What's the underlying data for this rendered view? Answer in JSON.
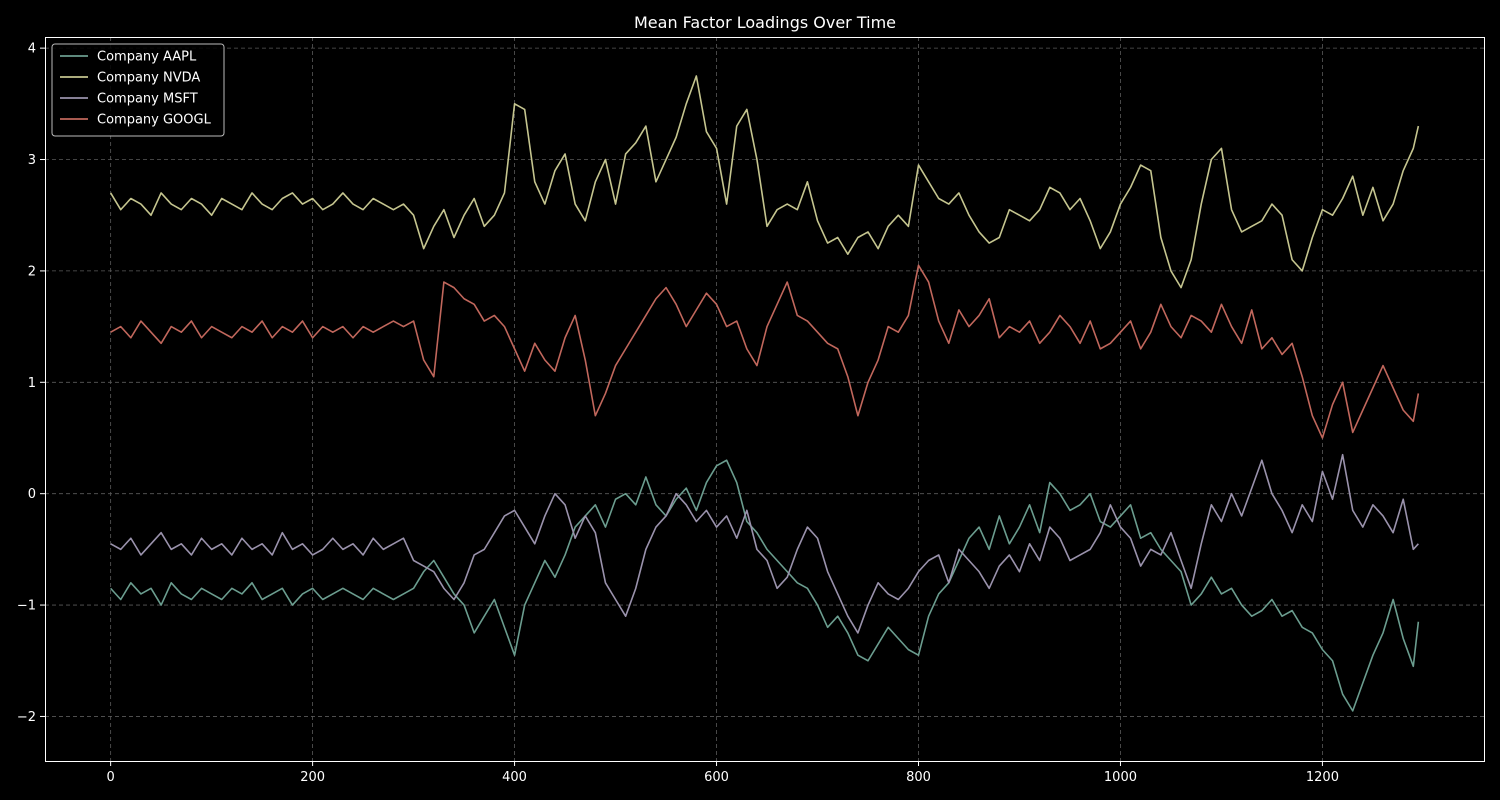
{
  "chart_data": {
    "type": "line",
    "title": "Mean Factor Loadings Over Time",
    "xlabel": "",
    "ylabel": "",
    "xlim": [
      -65,
      1360
    ],
    "ylim": [
      -2.4,
      4.1
    ],
    "xticks": [
      0,
      200,
      400,
      600,
      800,
      1000,
      1200
    ],
    "yticks": [
      -2,
      -1,
      0,
      1,
      2,
      3,
      4
    ],
    "ytick_labels": [
      "−2",
      "−1",
      "0",
      "1",
      "2",
      "3",
      "4"
    ],
    "grid": true,
    "legend_position": "top-left",
    "series": [
      {
        "name": "Company AAPL",
        "color": "#6b9d8f",
        "x": [
          0,
          10,
          20,
          30,
          40,
          50,
          60,
          70,
          80,
          90,
          100,
          110,
          120,
          130,
          140,
          150,
          160,
          170,
          180,
          190,
          200,
          210,
          220,
          230,
          240,
          250,
          260,
          270,
          280,
          290,
          300,
          310,
          320,
          330,
          340,
          350,
          360,
          370,
          380,
          390,
          400,
          410,
          420,
          430,
          440,
          450,
          460,
          470,
          480,
          490,
          500,
          510,
          520,
          530,
          540,
          550,
          560,
          570,
          580,
          590,
          600,
          610,
          620,
          630,
          640,
          650,
          660,
          670,
          680,
          690,
          700,
          710,
          720,
          730,
          740,
          750,
          760,
          770,
          780,
          790,
          800,
          810,
          820,
          830,
          840,
          850,
          860,
          870,
          880,
          890,
          900,
          910,
          920,
          930,
          940,
          950,
          960,
          970,
          980,
          990,
          1000,
          1010,
          1020,
          1030,
          1040,
          1050,
          1060,
          1070,
          1080,
          1090,
          1100,
          1110,
          1120,
          1130,
          1140,
          1150,
          1160,
          1170,
          1180,
          1190,
          1200,
          1210,
          1220,
          1230,
          1240,
          1250,
          1260,
          1270,
          1280,
          1290,
          1295
        ],
        "y": [
          -0.85,
          -0.95,
          -0.8,
          -0.9,
          -0.85,
          -1.0,
          -0.8,
          -0.9,
          -0.95,
          -0.85,
          -0.9,
          -0.95,
          -0.85,
          -0.9,
          -0.8,
          -0.95,
          -0.9,
          -0.85,
          -1.0,
          -0.9,
          -0.85,
          -0.95,
          -0.9,
          -0.85,
          -0.9,
          -0.95,
          -0.85,
          -0.9,
          -0.95,
          -0.9,
          -0.85,
          -0.7,
          -0.6,
          -0.75,
          -0.9,
          -1.0,
          -1.25,
          -1.1,
          -0.95,
          -1.2,
          -1.45,
          -1.0,
          -0.8,
          -0.6,
          -0.75,
          -0.55,
          -0.3,
          -0.2,
          -0.1,
          -0.3,
          -0.05,
          0.0,
          -0.1,
          0.15,
          -0.1,
          -0.2,
          -0.05,
          0.05,
          -0.15,
          0.1,
          0.25,
          0.3,
          0.1,
          -0.25,
          -0.35,
          -0.5,
          -0.6,
          -0.7,
          -0.8,
          -0.85,
          -1.0,
          -1.2,
          -1.1,
          -1.25,
          -1.45,
          -1.5,
          -1.35,
          -1.2,
          -1.3,
          -1.4,
          -1.45,
          -1.1,
          -0.9,
          -0.8,
          -0.6,
          -0.4,
          -0.3,
          -0.5,
          -0.2,
          -0.45,
          -0.3,
          -0.1,
          -0.35,
          0.1,
          0.0,
          -0.15,
          -0.1,
          0.0,
          -0.25,
          -0.3,
          -0.2,
          -0.1,
          -0.4,
          -0.35,
          -0.5,
          -0.6,
          -0.7,
          -1.0,
          -0.9,
          -0.75,
          -0.9,
          -0.85,
          -1.0,
          -1.1,
          -1.05,
          -0.95,
          -1.1,
          -1.05,
          -1.2,
          -1.25,
          -1.4,
          -1.5,
          -1.8,
          -1.95,
          -1.7,
          -1.45,
          -1.25,
          -0.95,
          -1.3,
          -1.55,
          -1.15
        ]
      },
      {
        "name": "Company NVDA",
        "color": "#c5c58f",
        "x": [
          0,
          10,
          20,
          30,
          40,
          50,
          60,
          70,
          80,
          90,
          100,
          110,
          120,
          130,
          140,
          150,
          160,
          170,
          180,
          190,
          200,
          210,
          220,
          230,
          240,
          250,
          260,
          270,
          280,
          290,
          300,
          310,
          320,
          330,
          340,
          350,
          360,
          370,
          380,
          390,
          400,
          410,
          420,
          430,
          440,
          450,
          460,
          470,
          480,
          490,
          500,
          510,
          520,
          530,
          540,
          550,
          560,
          570,
          580,
          590,
          600,
          610,
          620,
          630,
          640,
          650,
          660,
          670,
          680,
          690,
          700,
          710,
          720,
          730,
          740,
          750,
          760,
          770,
          780,
          790,
          800,
          810,
          820,
          830,
          840,
          850,
          860,
          870,
          880,
          890,
          900,
          910,
          920,
          930,
          940,
          950,
          960,
          970,
          980,
          990,
          1000,
          1010,
          1020,
          1030,
          1040,
          1050,
          1060,
          1070,
          1080,
          1090,
          1100,
          1110,
          1120,
          1130,
          1140,
          1150,
          1160,
          1170,
          1180,
          1190,
          1200,
          1210,
          1220,
          1230,
          1240,
          1250,
          1260,
          1270,
          1280,
          1290,
          1295
        ],
        "y": [
          2.7,
          2.55,
          2.65,
          2.6,
          2.5,
          2.7,
          2.6,
          2.55,
          2.65,
          2.6,
          2.5,
          2.65,
          2.6,
          2.55,
          2.7,
          2.6,
          2.55,
          2.65,
          2.7,
          2.6,
          2.65,
          2.55,
          2.6,
          2.7,
          2.6,
          2.55,
          2.65,
          2.6,
          2.55,
          2.6,
          2.5,
          2.2,
          2.4,
          2.55,
          2.3,
          2.5,
          2.65,
          2.4,
          2.5,
          2.7,
          3.5,
          3.45,
          2.8,
          2.6,
          2.9,
          3.05,
          2.6,
          2.45,
          2.8,
          3.0,
          2.6,
          3.05,
          3.15,
          3.3,
          2.8,
          3.0,
          3.2,
          3.5,
          3.75,
          3.25,
          3.1,
          2.6,
          3.3,
          3.45,
          3.0,
          2.4,
          2.55,
          2.6,
          2.55,
          2.8,
          2.45,
          2.25,
          2.3,
          2.15,
          2.3,
          2.35,
          2.2,
          2.4,
          2.5,
          2.4,
          2.95,
          2.8,
          2.65,
          2.6,
          2.7,
          2.5,
          2.35,
          2.25,
          2.3,
          2.55,
          2.5,
          2.45,
          2.55,
          2.75,
          2.7,
          2.55,
          2.65,
          2.45,
          2.2,
          2.35,
          2.6,
          2.75,
          2.95,
          2.9,
          2.3,
          2.0,
          1.85,
          2.1,
          2.6,
          3.0,
          3.1,
          2.55,
          2.35,
          2.4,
          2.45,
          2.6,
          2.5,
          2.1,
          2.0,
          2.3,
          2.55,
          2.5,
          2.65,
          2.85,
          2.5,
          2.75,
          2.45,
          2.6,
          2.9,
          3.1,
          3.3
        ]
      },
      {
        "name": "Company MSFT",
        "color": "#9a92ac",
        "x": [
          0,
          10,
          20,
          30,
          40,
          50,
          60,
          70,
          80,
          90,
          100,
          110,
          120,
          130,
          140,
          150,
          160,
          170,
          180,
          190,
          200,
          210,
          220,
          230,
          240,
          250,
          260,
          270,
          280,
          290,
          300,
          310,
          320,
          330,
          340,
          350,
          360,
          370,
          380,
          390,
          400,
          410,
          420,
          430,
          440,
          450,
          460,
          470,
          480,
          490,
          500,
          510,
          520,
          530,
          540,
          550,
          560,
          570,
          580,
          590,
          600,
          610,
          620,
          630,
          640,
          650,
          660,
          670,
          680,
          690,
          700,
          710,
          720,
          730,
          740,
          750,
          760,
          770,
          780,
          790,
          800,
          810,
          820,
          830,
          840,
          850,
          860,
          870,
          880,
          890,
          900,
          910,
          920,
          930,
          940,
          950,
          960,
          970,
          980,
          990,
          1000,
          1010,
          1020,
          1030,
          1040,
          1050,
          1060,
          1070,
          1080,
          1090,
          1100,
          1110,
          1120,
          1130,
          1140,
          1150,
          1160,
          1170,
          1180,
          1190,
          1200,
          1210,
          1220,
          1230,
          1240,
          1250,
          1260,
          1270,
          1280,
          1290,
          1295
        ],
        "y": [
          -0.45,
          -0.5,
          -0.4,
          -0.55,
          -0.45,
          -0.35,
          -0.5,
          -0.45,
          -0.55,
          -0.4,
          -0.5,
          -0.45,
          -0.55,
          -0.4,
          -0.5,
          -0.45,
          -0.55,
          -0.35,
          -0.5,
          -0.45,
          -0.55,
          -0.5,
          -0.4,
          -0.5,
          -0.45,
          -0.55,
          -0.4,
          -0.5,
          -0.45,
          -0.4,
          -0.6,
          -0.65,
          -0.7,
          -0.85,
          -0.95,
          -0.8,
          -0.55,
          -0.5,
          -0.35,
          -0.2,
          -0.15,
          -0.3,
          -0.45,
          -0.2,
          0.0,
          -0.1,
          -0.4,
          -0.2,
          -0.35,
          -0.8,
          -0.95,
          -1.1,
          -0.85,
          -0.5,
          -0.3,
          -0.2,
          0.0,
          -0.1,
          -0.25,
          -0.15,
          -0.3,
          -0.2,
          -0.4,
          -0.15,
          -0.5,
          -0.6,
          -0.85,
          -0.75,
          -0.5,
          -0.3,
          -0.4,
          -0.7,
          -0.9,
          -1.1,
          -1.25,
          -1.0,
          -0.8,
          -0.9,
          -0.95,
          -0.85,
          -0.7,
          -0.6,
          -0.55,
          -0.8,
          -0.5,
          -0.6,
          -0.7,
          -0.85,
          -0.65,
          -0.55,
          -0.7,
          -0.45,
          -0.6,
          -0.3,
          -0.4,
          -0.6,
          -0.55,
          -0.5,
          -0.35,
          -0.1,
          -0.3,
          -0.4,
          -0.65,
          -0.5,
          -0.55,
          -0.35,
          -0.6,
          -0.85,
          -0.45,
          -0.1,
          -0.25,
          0.0,
          -0.2,
          0.05,
          0.3,
          0.0,
          -0.15,
          -0.35,
          -0.1,
          -0.25,
          0.2,
          -0.05,
          0.35,
          -0.15,
          -0.3,
          -0.1,
          -0.2,
          -0.35,
          -0.05,
          -0.5,
          -0.45
        ]
      },
      {
        "name": "Company GOOGL",
        "color": "#c1675c",
        "x": [
          0,
          10,
          20,
          30,
          40,
          50,
          60,
          70,
          80,
          90,
          100,
          110,
          120,
          130,
          140,
          150,
          160,
          170,
          180,
          190,
          200,
          210,
          220,
          230,
          240,
          250,
          260,
          270,
          280,
          290,
          300,
          310,
          320,
          330,
          340,
          350,
          360,
          370,
          380,
          390,
          400,
          410,
          420,
          430,
          440,
          450,
          460,
          470,
          480,
          490,
          500,
          510,
          520,
          530,
          540,
          550,
          560,
          570,
          580,
          590,
          600,
          610,
          620,
          630,
          640,
          650,
          660,
          670,
          680,
          690,
          700,
          710,
          720,
          730,
          740,
          750,
          760,
          770,
          780,
          790,
          800,
          810,
          820,
          830,
          840,
          850,
          860,
          870,
          880,
          890,
          900,
          910,
          920,
          930,
          940,
          950,
          960,
          970,
          980,
          990,
          1000,
          1010,
          1020,
          1030,
          1040,
          1050,
          1060,
          1070,
          1080,
          1090,
          1100,
          1110,
          1120,
          1130,
          1140,
          1150,
          1160,
          1170,
          1180,
          1190,
          1200,
          1210,
          1220,
          1230,
          1240,
          1250,
          1260,
          1270,
          1280,
          1290,
          1295
        ],
        "y": [
          1.45,
          1.5,
          1.4,
          1.55,
          1.45,
          1.35,
          1.5,
          1.45,
          1.55,
          1.4,
          1.5,
          1.45,
          1.4,
          1.5,
          1.45,
          1.55,
          1.4,
          1.5,
          1.45,
          1.55,
          1.4,
          1.5,
          1.45,
          1.5,
          1.4,
          1.5,
          1.45,
          1.5,
          1.55,
          1.5,
          1.55,
          1.2,
          1.05,
          1.9,
          1.85,
          1.75,
          1.7,
          1.55,
          1.6,
          1.5,
          1.3,
          1.1,
          1.35,
          1.2,
          1.1,
          1.4,
          1.6,
          1.2,
          0.7,
          0.9,
          1.15,
          1.3,
          1.45,
          1.6,
          1.75,
          1.85,
          1.7,
          1.5,
          1.65,
          1.8,
          1.7,
          1.5,
          1.55,
          1.3,
          1.15,
          1.5,
          1.7,
          1.9,
          1.6,
          1.55,
          1.45,
          1.35,
          1.3,
          1.05,
          0.7,
          1.0,
          1.2,
          1.5,
          1.45,
          1.6,
          2.05,
          1.9,
          1.55,
          1.35,
          1.65,
          1.5,
          1.6,
          1.75,
          1.4,
          1.5,
          1.45,
          1.55,
          1.35,
          1.45,
          1.6,
          1.5,
          1.35,
          1.55,
          1.3,
          1.35,
          1.45,
          1.55,
          1.3,
          1.45,
          1.7,
          1.5,
          1.4,
          1.6,
          1.55,
          1.45,
          1.7,
          1.5,
          1.35,
          1.65,
          1.3,
          1.4,
          1.25,
          1.35,
          1.05,
          0.7,
          0.5,
          0.8,
          1.0,
          0.55,
          0.75,
          0.95,
          1.15,
          0.95,
          0.75,
          0.65,
          0.9
        ]
      }
    ]
  }
}
